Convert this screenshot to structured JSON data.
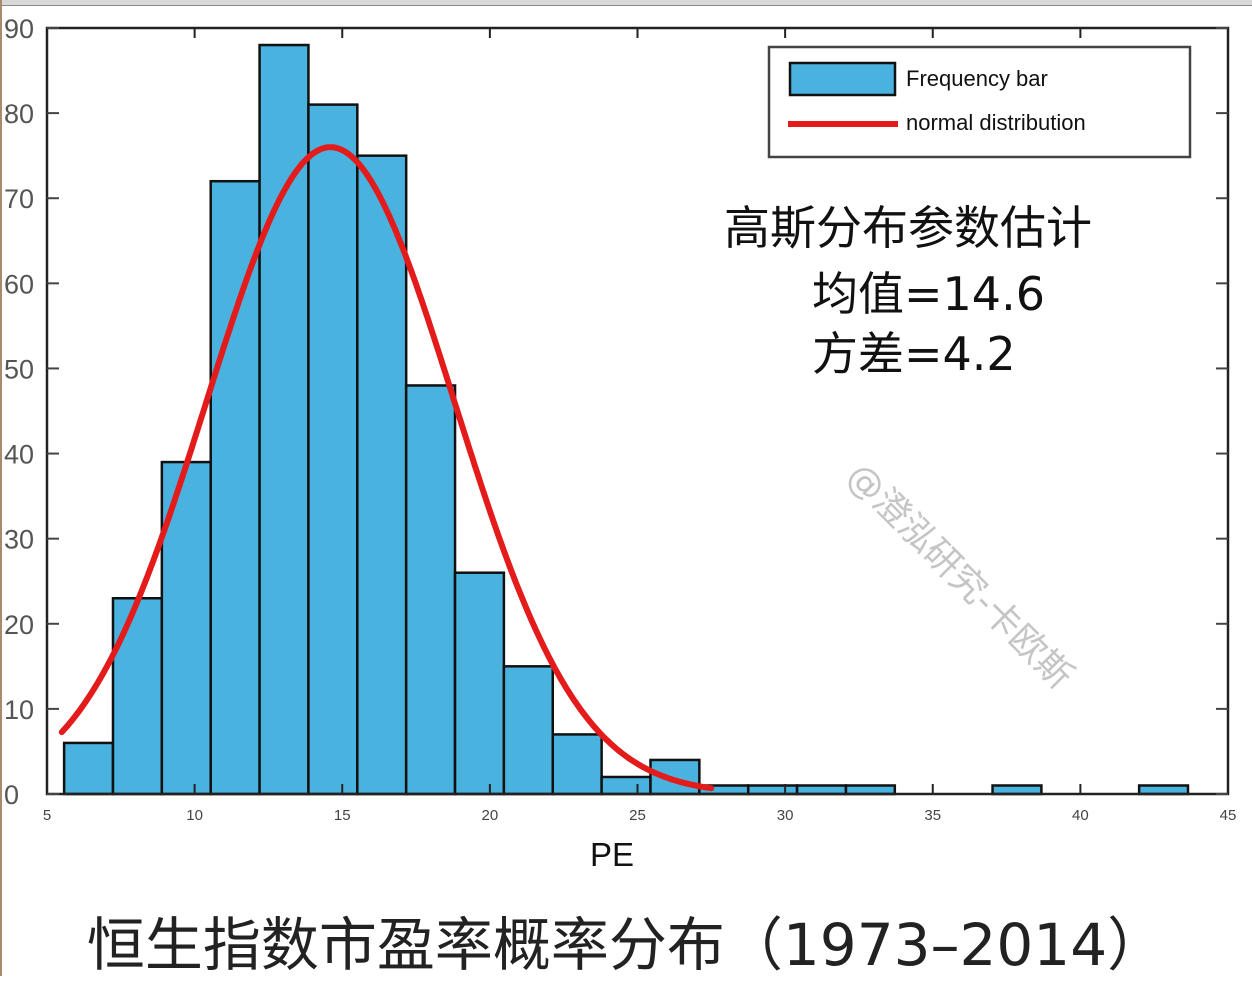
{
  "chart_data": {
    "type": "bar",
    "title": "恒生指数市盈率概率分布（1973–2014）",
    "xlabel": "PE",
    "ylabel": "",
    "xlim": [
      5,
      45
    ],
    "ylim": [
      0,
      90
    ],
    "xticks": [
      "5",
      "10",
      "15",
      "20",
      "25",
      "30",
      "35",
      "40",
      "45"
    ],
    "yticks": [
      "0",
      "10",
      "20",
      "30",
      "40",
      "50",
      "60",
      "70",
      "80",
      "90"
    ],
    "bin_start": 5.58,
    "bin_width": 1.655,
    "values": [
      6,
      23,
      39,
      72,
      88,
      81,
      75,
      48,
      26,
      15,
      7,
      2,
      4,
      1,
      1,
      1,
      1,
      0,
      0,
      1,
      0,
      0,
      1
    ],
    "normal_fit": {
      "mean": 14.6,
      "sigma": 4.2,
      "peak": 76,
      "x_range": [
        5.5,
        27.5
      ]
    },
    "legend": {
      "position": "top-right",
      "entries": [
        "Frequency bar",
        "normal distribution"
      ]
    },
    "annotation": {
      "heading": "高斯分布参数估计",
      "mean_line": "均值=14.6",
      "var_line": "方差=4.2"
    },
    "watermark": "@澄泓研究-卡欧斯",
    "colors": {
      "bar": "#4ab2df",
      "curve": "#e31b1b"
    },
    "grid": false
  }
}
